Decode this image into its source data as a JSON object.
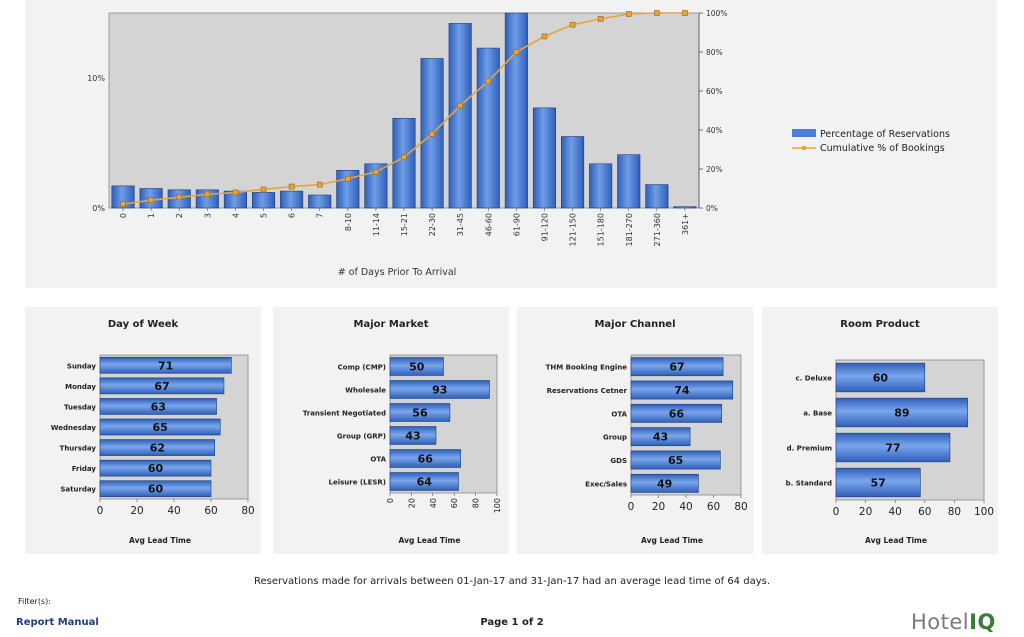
{
  "chart_data": [
    {
      "type": "bar+line",
      "categories": [
        "0",
        "1",
        "2",
        "3",
        "4",
        "5",
        "6",
        "7",
        "8-10",
        "11-14",
        "15-21",
        "22-30",
        "31-45",
        "46-60",
        "61-90",
        "91-120",
        "121-150",
        "151-180",
        "181-270",
        "271-360",
        "361+"
      ],
      "series": [
        {
          "name": "Percentage of Reservations",
          "axis": "left",
          "values": [
            1.7,
            1.5,
            1.4,
            1.4,
            1.3,
            1.2,
            1.3,
            1.0,
            2.9,
            3.4,
            6.9,
            11.5,
            14.2,
            12.3,
            15.0,
            7.7,
            5.5,
            3.4,
            4.1,
            1.8,
            0.1
          ]
        },
        {
          "name": "Cumulative % of Bookings",
          "axis": "right",
          "values": [
            2,
            4,
            5.5,
            7,
            8,
            9.5,
            11,
            12,
            15,
            18.5,
            26,
            38,
            52.5,
            65,
            80,
            88,
            94,
            97,
            99.5,
            100,
            100
          ]
        }
      ],
      "xlabel": "# of Days Prior To Arrival",
      "y_left": {
        "ylim": [
          0,
          15
        ],
        "ticks": [
          0,
          10
        ],
        "tick_labels": [
          "0%",
          "10%"
        ]
      },
      "y_right": {
        "ylim": [
          0,
          100
        ],
        "ticks": [
          0,
          20,
          40,
          60,
          80,
          100
        ],
        "tick_labels": [
          "0%",
          "20%",
          "40%",
          "60%",
          "80%",
          "100%"
        ]
      },
      "legend": "right",
      "colors": {
        "bar": "#4a7fd9",
        "line": "#e8a33d"
      }
    },
    {
      "type": "bar",
      "orientation": "horizontal",
      "title": "Day of Week",
      "categories": [
        "Sunday",
        "Monday",
        "Tuesday",
        "Wednesday",
        "Thursday",
        "Friday",
        "Saturday"
      ],
      "values": [
        71,
        67,
        63,
        65,
        62,
        60,
        60
      ],
      "xlabel": "Avg Lead Time",
      "xlim": [
        0,
        80
      ],
      "ticks": [
        0,
        20,
        40,
        60,
        80
      ]
    },
    {
      "type": "bar",
      "orientation": "horizontal",
      "title": "Major Market",
      "categories": [
        "Comp (CMP)",
        "Wholesale",
        "Transient Negotiated",
        "Group (GRP)",
        "OTA",
        "Leisure (LESR)"
      ],
      "values": [
        50,
        93,
        56,
        43,
        66,
        64
      ],
      "xlabel": "Avg Lead Time",
      "xlim": [
        0,
        100
      ],
      "ticks": [
        0,
        20,
        40,
        60,
        80,
        100
      ],
      "tick_rotation": "vertical"
    },
    {
      "type": "bar",
      "orientation": "horizontal",
      "title": "Major Channel",
      "categories": [
        "THM Booking Engine",
        "Reservations Cetner",
        "OTA",
        "Group",
        "GDS",
        "Exec/Sales"
      ],
      "values": [
        67,
        74,
        66,
        43,
        65,
        49
      ],
      "xlabel": "Avg Lead Time",
      "xlim": [
        0,
        80
      ],
      "ticks": [
        0,
        20,
        40,
        60,
        80
      ]
    },
    {
      "type": "bar",
      "orientation": "horizontal",
      "title": "Room Product",
      "categories": [
        "c. Deluxe",
        "a. Base",
        "d. Premium",
        "b. Standard"
      ],
      "values": [
        60,
        89,
        77,
        57
      ],
      "xlabel": "Avg Lead Time",
      "xlim": [
        0,
        100
      ],
      "ticks": [
        0,
        20,
        40,
        60,
        80,
        100
      ]
    }
  ],
  "footer": {
    "summary": "Reservations made for arrivals between 01-Jan-17 and 31-Jan-17 had an average lead time of 64 days.",
    "filters_label": "Filter(s):",
    "report_manual": "Report Manual",
    "page": "Page 1 of 2",
    "logo_hotel": "Hotel",
    "logo_iq": "IQ"
  }
}
